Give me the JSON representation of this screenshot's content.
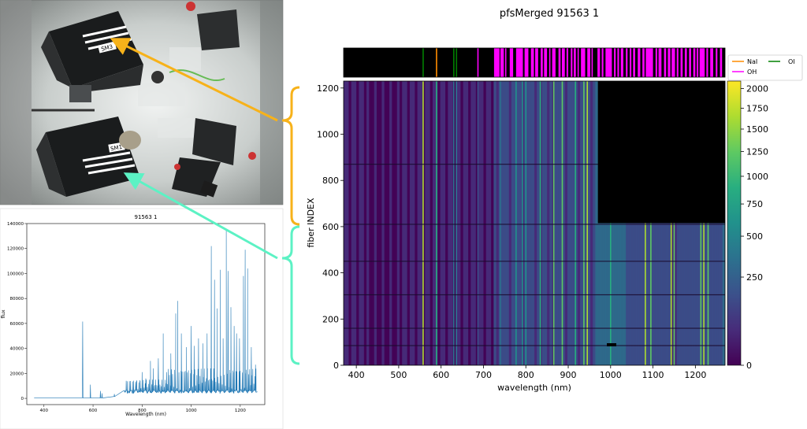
{
  "photo": {
    "labels": [
      "SM3",
      "SM1"
    ],
    "line_colors": {
      "sm3": "#f7b21a",
      "sm1": "#5cf2c4"
    }
  },
  "chart_data": [
    {
      "type": "line",
      "title": "91563 1",
      "xlabel": "Wavelength (nm)",
      "ylabel": "flux",
      "xlim": [
        330,
        1300
      ],
      "ylim": [
        -5000,
        140000
      ],
      "xticks": [
        400,
        600,
        800,
        1000,
        1200
      ],
      "yticks": [
        0,
        20000,
        40000,
        60000,
        80000,
        100000,
        120000,
        140000
      ],
      "color": "#1f77b4",
      "baseline_range": [
        360,
        1270
      ],
      "peaks": [
        {
          "x": 557.7,
          "y": 61500
        },
        {
          "x": 589.3,
          "y": 11000
        },
        {
          "x": 630.0,
          "y": 6000
        },
        {
          "x": 636.4,
          "y": 4000
        },
        {
          "x": 687,
          "y": 3500
        },
        {
          "x": 725,
          "y": 6000
        },
        {
          "x": 740,
          "y": 8000
        },
        {
          "x": 761,
          "y": 9500
        },
        {
          "x": 777,
          "y": 14000
        },
        {
          "x": 792,
          "y": 14000
        },
        {
          "x": 800,
          "y": 21000
        },
        {
          "x": 815,
          "y": 16000
        },
        {
          "x": 834,
          "y": 30000
        },
        {
          "x": 846,
          "y": 24000
        },
        {
          "x": 866,
          "y": 32000
        },
        {
          "x": 886,
          "y": 52000
        },
        {
          "x": 900,
          "y": 21000
        },
        {
          "x": 917,
          "y": 36000
        },
        {
          "x": 937,
          "y": 68000
        },
        {
          "x": 945,
          "y": 78000
        },
        {
          "x": 960,
          "y": 52000
        },
        {
          "x": 980,
          "y": 41000
        },
        {
          "x": 1000,
          "y": 58000
        },
        {
          "x": 1012,
          "y": 42000
        },
        {
          "x": 1030,
          "y": 48000
        },
        {
          "x": 1048,
          "y": 44000
        },
        {
          "x": 1065,
          "y": 52000
        },
        {
          "x": 1082,
          "y": 122000
        },
        {
          "x": 1095,
          "y": 95000
        },
        {
          "x": 1105,
          "y": 72000
        },
        {
          "x": 1118,
          "y": 103000
        },
        {
          "x": 1130,
          "y": 48000
        },
        {
          "x": 1143,
          "y": 135000
        },
        {
          "x": 1150,
          "y": 102000
        },
        {
          "x": 1162,
          "y": 73000
        },
        {
          "x": 1175,
          "y": 58000
        },
        {
          "x": 1185,
          "y": 52000
        },
        {
          "x": 1197,
          "y": 48000
        },
        {
          "x": 1213,
          "y": 98000
        },
        {
          "x": 1220,
          "y": 119000
        },
        {
          "x": 1230,
          "y": 104000
        },
        {
          "x": 1245,
          "y": 41000
        },
        {
          "x": 1262,
          "y": 27000
        }
      ]
    },
    {
      "type": "heatmap",
      "title": "pfsMerged  91563 1",
      "xlabel": "wavelength (nm)",
      "ylabel": "fiber INDEX",
      "xlim": [
        370,
        1270
      ],
      "ylim": [
        0,
        1230
      ],
      "xticks": [
        400,
        500,
        600,
        700,
        800,
        900,
        1000,
        1100,
        1200
      ],
      "yticks": [
        0,
        200,
        400,
        600,
        800,
        1000,
        1200
      ],
      "colorbar": {
        "ticks": [
          0,
          250,
          500,
          750,
          1000,
          1250,
          1500,
          1750,
          2000
        ],
        "max": 2100,
        "colors": [
          "#440154",
          "#472c7a",
          "#3b518b",
          "#2c718e",
          "#21918c",
          "#28ae80",
          "#5ec962",
          "#addc30",
          "#fde725"
        ]
      },
      "blank_region": {
        "x_from": 970,
        "fiber_from": 615
      },
      "sky_lines": [
        {
          "wavelength": 557.7,
          "level": 0.85
        },
        {
          "wavelength": 589.3,
          "level": 0.6
        },
        {
          "wavelength": 630.0,
          "level": 0.4
        },
        {
          "wavelength": 636.4,
          "level": 0.35
        },
        {
          "wavelength": 687,
          "level": 0.3
        },
        {
          "wavelength": 740,
          "level": 0.35
        },
        {
          "wavelength": 777,
          "level": 0.45
        },
        {
          "wavelength": 792,
          "level": 0.5
        },
        {
          "wavelength": 800,
          "level": 0.55
        },
        {
          "wavelength": 834,
          "level": 0.6
        },
        {
          "wavelength": 866,
          "level": 0.7
        },
        {
          "wavelength": 886,
          "level": 0.8
        },
        {
          "wavelength": 917,
          "level": 0.6
        },
        {
          "wavelength": 937,
          "level": 0.8
        },
        {
          "wavelength": 945,
          "level": 0.85
        },
        {
          "wavelength": 1000,
          "level": 0.6
        },
        {
          "wavelength": 1082,
          "level": 0.85
        },
        {
          "wavelength": 1095,
          "level": 0.8
        },
        {
          "wavelength": 1143,
          "level": 0.9
        },
        {
          "wavelength": 1150,
          "level": 0.8
        },
        {
          "wavelength": 1213,
          "level": 0.8
        },
        {
          "wavelength": 1220,
          "level": 0.9
        },
        {
          "wavelength": 1230,
          "level": 0.8
        }
      ],
      "gap_fibers": [
        610,
        305,
        85,
        160,
        450,
        870
      ],
      "line_strip": {
        "legend": [
          {
            "name": "NaI",
            "color": "#ff8c00"
          },
          {
            "name": "OI",
            "color": "#008000"
          },
          {
            "name": "OH",
            "color": "#ff00ff"
          }
        ],
        "markers": [
          {
            "species": "OI",
            "wavelength": 557.7
          },
          {
            "species": "NaI",
            "wavelength": 589.3
          },
          {
            "species": "OI",
            "wavelength": 630.0
          },
          {
            "species": "OI",
            "wavelength": 636.4
          },
          {
            "species": "OH",
            "wavelength": 687
          }
        ],
        "oh_bands": [
          [
            725,
            738
          ],
          [
            740,
            748
          ],
          [
            751,
            754
          ],
          [
            762,
            770
          ],
          [
            777,
            793
          ],
          [
            797,
            806
          ],
          [
            812,
            819
          ],
          [
            822,
            829
          ],
          [
            835,
            840
          ],
          [
            843,
            850
          ],
          [
            855,
            858
          ],
          [
            862,
            870
          ],
          [
            877,
            882
          ],
          [
            885,
            892
          ],
          [
            896,
            900
          ],
          [
            906,
            910
          ],
          [
            913,
            918
          ],
          [
            922,
            925
          ],
          [
            930,
            940
          ],
          [
            945,
            952
          ],
          [
            955,
            958
          ],
          [
            969,
            975
          ],
          [
            979,
            983
          ],
          [
            988,
            1003
          ],
          [
            1008,
            1012
          ],
          [
            1016,
            1020
          ],
          [
            1024,
            1030
          ],
          [
            1036,
            1040
          ],
          [
            1045,
            1049
          ],
          [
            1053,
            1058
          ],
          [
            1064,
            1070
          ],
          [
            1075,
            1080
          ],
          [
            1083,
            1100
          ],
          [
            1106,
            1110
          ],
          [
            1113,
            1120
          ],
          [
            1126,
            1131
          ],
          [
            1135,
            1141
          ],
          [
            1144,
            1152
          ],
          [
            1156,
            1160
          ],
          [
            1165,
            1170
          ],
          [
            1175,
            1180
          ],
          [
            1185,
            1190
          ],
          [
            1195,
            1200
          ],
          [
            1203,
            1207
          ],
          [
            1210,
            1222
          ],
          [
            1226,
            1230
          ],
          [
            1235,
            1242
          ],
          [
            1248,
            1252
          ],
          [
            1258,
            1263
          ]
        ]
      }
    }
  ]
}
